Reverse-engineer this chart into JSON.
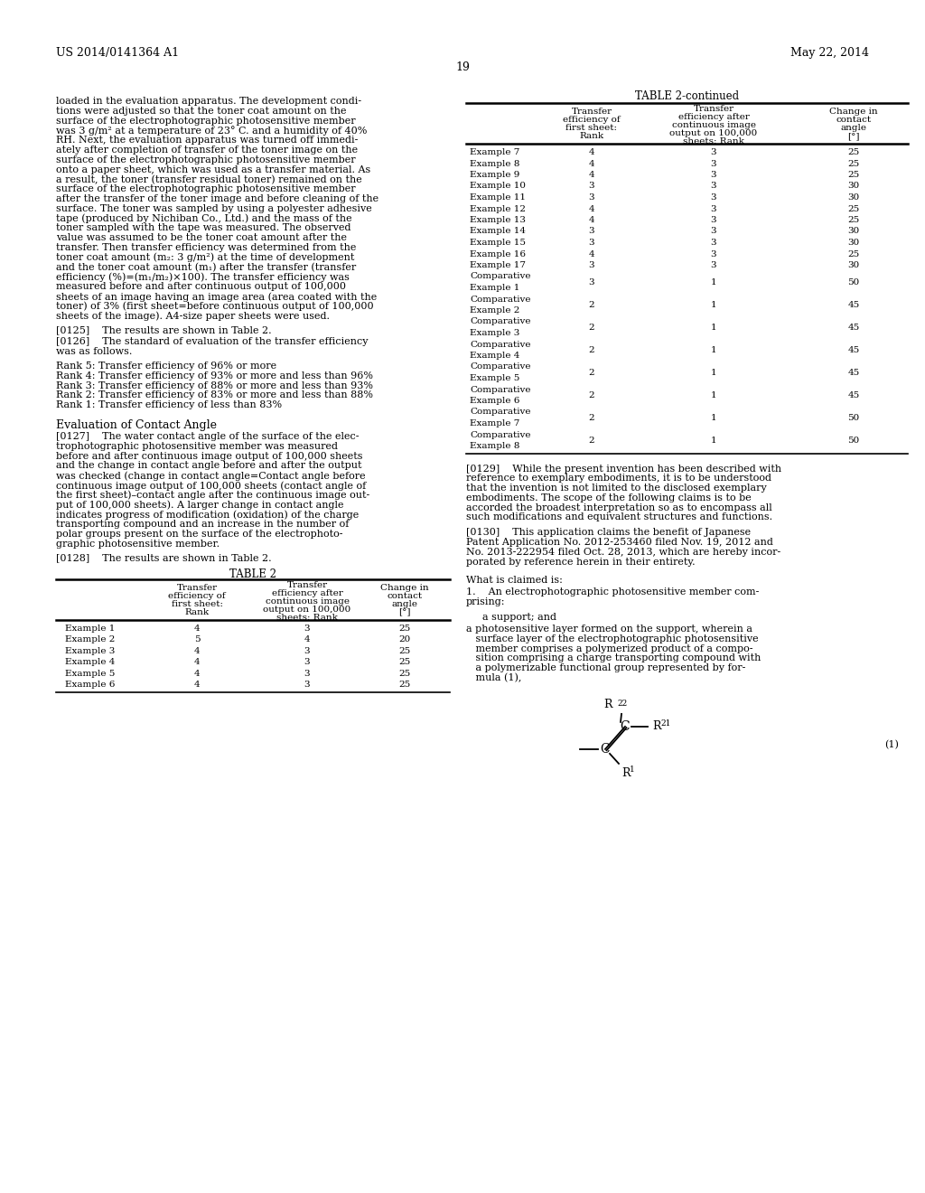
{
  "background_color": "#ffffff",
  "header_left": "US 2014/0141364 A1",
  "header_right": "May 22, 2014",
  "page_number": "19",
  "table2_continued_title": "TABLE 2-continued",
  "table2_continued_rows": [
    [
      "Example 7",
      "4",
      "3",
      "25"
    ],
    [
      "Example 8",
      "4",
      "3",
      "25"
    ],
    [
      "Example 9",
      "4",
      "3",
      "25"
    ],
    [
      "Example 10",
      "3",
      "3",
      "30"
    ],
    [
      "Example 11",
      "3",
      "3",
      "30"
    ],
    [
      "Example 12",
      "4",
      "3",
      "25"
    ],
    [
      "Example 13",
      "4",
      "3",
      "25"
    ],
    [
      "Example 14",
      "3",
      "3",
      "30"
    ],
    [
      "Example 15",
      "3",
      "3",
      "30"
    ],
    [
      "Example 16",
      "4",
      "3",
      "25"
    ],
    [
      "Example 17",
      "3",
      "3",
      "30"
    ],
    [
      "Comparative\nExample 1",
      "3",
      "1",
      "50"
    ],
    [
      "Comparative\nExample 2",
      "2",
      "1",
      "45"
    ],
    [
      "Comparative\nExample 3",
      "2",
      "1",
      "45"
    ],
    [
      "Comparative\nExample 4",
      "2",
      "1",
      "45"
    ],
    [
      "Comparative\nExample 5",
      "2",
      "1",
      "45"
    ],
    [
      "Comparative\nExample 6",
      "2",
      "1",
      "45"
    ],
    [
      "Comparative\nExample 7",
      "2",
      "1",
      "50"
    ],
    [
      "Comparative\nExample 8",
      "2",
      "1",
      "50"
    ]
  ],
  "table2_title": "TABLE 2",
  "table2_rows": [
    [
      "Example 1",
      "4",
      "3",
      "25"
    ],
    [
      "Example 2",
      "5",
      "4",
      "20"
    ],
    [
      "Example 3",
      "4",
      "3",
      "25"
    ],
    [
      "Example 4",
      "4",
      "3",
      "25"
    ],
    [
      "Example 5",
      "4",
      "3",
      "25"
    ],
    [
      "Example 6",
      "4",
      "3",
      "25"
    ]
  ],
  "left_para1": "loaded in the evaluation apparatus. The development condi-\ntions were adjusted so that the toner coat amount on the\nsurface of the electrophotographic photosensitive member\nwas 3 g/m² at a temperature of 23° C. and a humidity of 40%\nRH. Next, the evaluation apparatus was turned off immedi-\nately after completion of transfer of the toner image on the\nsurface of the electrophotographic photosensitive member\nonto a paper sheet, which was used as a transfer material. As\na result, the toner (transfer residual toner) remained on the\nsurface of the electrophotographic photosensitive member\nafter the transfer of the toner image and before cleaning of the\nsurface. The toner was sampled by using a polyester adhesive\ntape (produced by Nichiban Co., Ltd.) and the mass of the\ntoner sampled with the tape was measured. The observed\nvalue was assumed to be the toner coat amount after the\ntransfer. Then transfer efficiency was determined from the\ntoner coat amount (m₂: 3 g/m²) at the time of development\nand the toner coat amount (m₁) after the transfer (transfer\nefficiency (%)=(m₁/m₂)×100). The transfer efficiency was\nmeasured before and after continuous output of 100,000\nsheets of an image having an image area (area coated with the\ntoner) of 3% (first sheet=before continuous output of 100,000\nsheets of the image). A4-size paper sheets were used.",
  "para_0125": "[0125]    The results are shown in Table 2.",
  "para_0126": "[0126]    The standard of evaluation of the transfer efficiency\nwas as follows.",
  "ranks": "Rank 5: Transfer efficiency of 96% or more\nRank 4: Transfer efficiency of 93% or more and less than 96%\nRank 3: Transfer efficiency of 88% or more and less than 93%\nRank 2: Transfer efficiency of 83% or more and less than 88%\nRank 1: Transfer efficiency of less than 83%",
  "eval_heading": "Evaluation of Contact Angle",
  "para_0127": "[0127]    The water contact angle of the surface of the elec-\ntrophotographic photosensitive member was measured\nbefore and after continuous image output of 100,000 sheets\nand the change in contact angle before and after the output\nwas checked (change in contact angle=Contact angle before\ncontinuous image output of 100,000 sheets (contact angle of\nthe first sheet)–contact angle after the continuous image out-\nput of 100,000 sheets). A larger change in contact angle\nindicates progress of modification (oxidation) of the charge\ntransporting compound and an increase in the number of\npolar groups present on the surface of the electrophoto-\ngraphic photosensitive member.",
  "para_0128": "[0128]    The results are shown in Table 2.",
  "para_0129": "[0129]    While the present invention has been described with\nreference to exemplary embodiments, it is to be understood\nthat the invention is not limited to the disclosed exemplary\nembodiments. The scope of the following claims is to be\naccorded the broadest interpretation so as to encompass all\nsuch modifications and equivalent structures and functions.",
  "para_0130": "[0130]    This application claims the benefit of Japanese\nPatent Application No. 2012-253460 filed Nov. 19, 2012 and\nNo. 2013-222954 filed Oct. 28, 2013, which are hereby incor-\nporated by reference herein in their entirety.",
  "what_claimed": "What is claimed is:",
  "claim1a": "1.    An electrophotographic photosensitive member com-\nprising:",
  "claim1b": "a support; and",
  "claim1c": "a photosensitive layer formed on the support, wherein a\n   surface layer of the electrophotographic photosensitive\n   member comprises a polymerized product of a compo-\n   sition comprising a charge transporting compound with\n   a polymerizable functional group represented by for-\n   mula (1),",
  "formula_label": "(1)"
}
